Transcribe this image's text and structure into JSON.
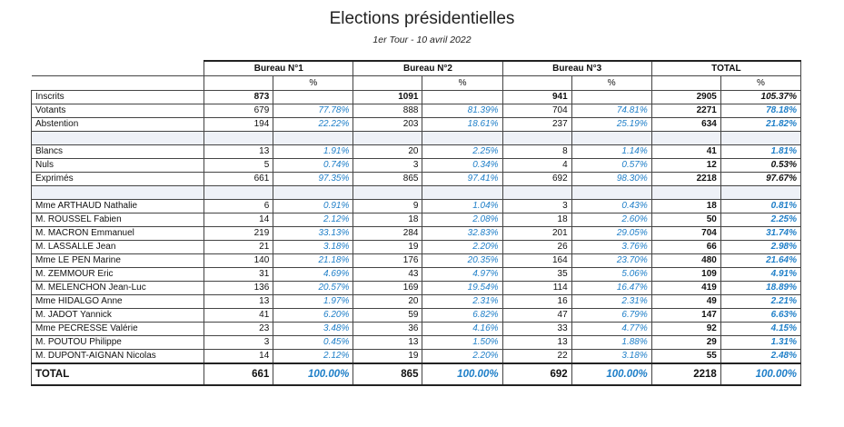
{
  "header": {
    "title": "Elections présidentielles",
    "subtitle": "1er Tour - 10 avril 2022"
  },
  "columns": {
    "bureaux": [
      "Bureau N°1",
      "Bureau N°2",
      "Bureau N°3",
      "TOTAL"
    ],
    "pct_label": "%"
  },
  "summary_rows": [
    {
      "label": "Inscrits",
      "values": [
        "873",
        "",
        "1091",
        "",
        "941",
        "",
        "2905",
        "105.37%"
      ]
    },
    {
      "label": "Votants",
      "values": [
        "679",
        "77.78%",
        "888",
        "81.39%",
        "704",
        "74.81%",
        "2271",
        "78.18%"
      ]
    },
    {
      "label": "Abstention",
      "values": [
        "194",
        "22.22%",
        "203",
        "18.61%",
        "237",
        "25.19%",
        "634",
        "21.82%"
      ]
    }
  ],
  "vote_rows": [
    {
      "label": "Blancs",
      "values": [
        "13",
        "1.91%",
        "20",
        "2.25%",
        "8",
        "1.14%",
        "41",
        "1.81%"
      ]
    },
    {
      "label": "Nuls",
      "values": [
        "5",
        "0.74%",
        "3",
        "0.34%",
        "4",
        "0.57%",
        "12",
        "0.53%"
      ]
    },
    {
      "label": "Exprimés",
      "values": [
        "661",
        "97.35%",
        "865",
        "97.41%",
        "692",
        "98.30%",
        "2218",
        "97.67%"
      ]
    }
  ],
  "candidates": [
    {
      "label": "Mme ARTHAUD Nathalie",
      "values": [
        "6",
        "0.91%",
        "9",
        "1.04%",
        "3",
        "0.43%",
        "18",
        "0.81%"
      ]
    },
    {
      "label": "M. ROUSSEL Fabien",
      "values": [
        "14",
        "2.12%",
        "18",
        "2.08%",
        "18",
        "2.60%",
        "50",
        "2.25%"
      ]
    },
    {
      "label": "M. MACRON Emmanuel",
      "values": [
        "219",
        "33.13%",
        "284",
        "32.83%",
        "201",
        "29.05%",
        "704",
        "31.74%"
      ]
    },
    {
      "label": "M. LASSALLE Jean",
      "values": [
        "21",
        "3.18%",
        "19",
        "2.20%",
        "26",
        "3.76%",
        "66",
        "2.98%"
      ]
    },
    {
      "label": "Mme LE PEN Marine",
      "values": [
        "140",
        "21.18%",
        "176",
        "20.35%",
        "164",
        "23.70%",
        "480",
        "21.64%"
      ]
    },
    {
      "label": "M. ZEMMOUR Eric",
      "values": [
        "31",
        "4.69%",
        "43",
        "4.97%",
        "35",
        "5.06%",
        "109",
        "4.91%"
      ]
    },
    {
      "label": "M. MELENCHON Jean-Luc",
      "values": [
        "136",
        "20.57%",
        "169",
        "19.54%",
        "114",
        "16.47%",
        "419",
        "18.89%"
      ]
    },
    {
      "label": "Mme HIDALGO Anne",
      "values": [
        "13",
        "1.97%",
        "20",
        "2.31%",
        "16",
        "2.31%",
        "49",
        "2.21%"
      ]
    },
    {
      "label": "M. JADOT Yannick",
      "values": [
        "41",
        "6.20%",
        "59",
        "6.82%",
        "47",
        "6.79%",
        "147",
        "6.63%"
      ]
    },
    {
      "label": "Mme PECRESSE Valérie",
      "values": [
        "23",
        "3.48%",
        "36",
        "4.16%",
        "33",
        "4.77%",
        "92",
        "4.15%"
      ]
    },
    {
      "label": "M. POUTOU Philippe",
      "values": [
        "3",
        "0.45%",
        "13",
        "1.50%",
        "13",
        "1.88%",
        "29",
        "1.31%"
      ]
    },
    {
      "label": "M. DUPONT-AIGNAN Nicolas",
      "values": [
        "14",
        "2.12%",
        "19",
        "2.20%",
        "22",
        "3.18%",
        "55",
        "2.48%"
      ]
    }
  ],
  "total_row": {
    "label": "TOTAL",
    "values": [
      "661",
      "100.00%",
      "865",
      "100.00%",
      "692",
      "100.00%",
      "2218",
      "100.00%"
    ]
  },
  "colors": {
    "pct_text": "#1f7fc8",
    "separator": "#eef1f7"
  }
}
